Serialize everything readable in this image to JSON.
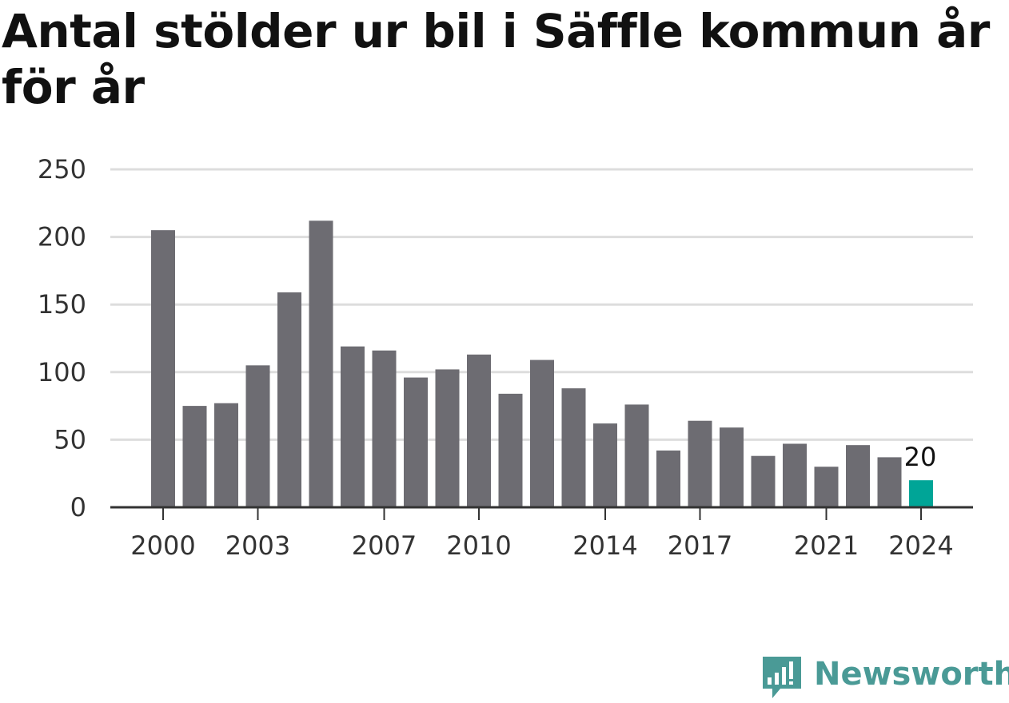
{
  "title": "Antal stölder ur bil i Säffle kommun år för år",
  "chart_data": {
    "type": "bar",
    "categories": [
      "2000",
      "2001",
      "2002",
      "2003",
      "2004",
      "2005",
      "2006",
      "2007",
      "2008",
      "2009",
      "2010",
      "2011",
      "2012",
      "2013",
      "2014",
      "2015",
      "2016",
      "2017",
      "2018",
      "2019",
      "2020",
      "2021",
      "2022",
      "2023",
      "2024"
    ],
    "values": [
      205,
      75,
      77,
      105,
      159,
      212,
      119,
      116,
      96,
      102,
      113,
      84,
      109,
      88,
      62,
      76,
      42,
      64,
      59,
      38,
      47,
      30,
      46,
      37,
      20
    ],
    "x_tick_labels": [
      "2000",
      "2003",
      "2007",
      "2010",
      "2014",
      "2017",
      "2021",
      "2024"
    ],
    "y_ticks": [
      0,
      50,
      100,
      150,
      200,
      250
    ],
    "ylim": [
      0,
      250
    ],
    "highlight": {
      "category": "2024",
      "label": "20"
    },
    "xlabel": "",
    "ylabel": "",
    "grid": true,
    "colors": {
      "bar": "#6d6c72",
      "highlight": "#00a597",
      "grid": "#dddddd",
      "axis": "#333333"
    }
  },
  "brand": {
    "name": "Newsworthy",
    "icon": "newsworthy-logo-icon",
    "color": "#4a9a96"
  }
}
